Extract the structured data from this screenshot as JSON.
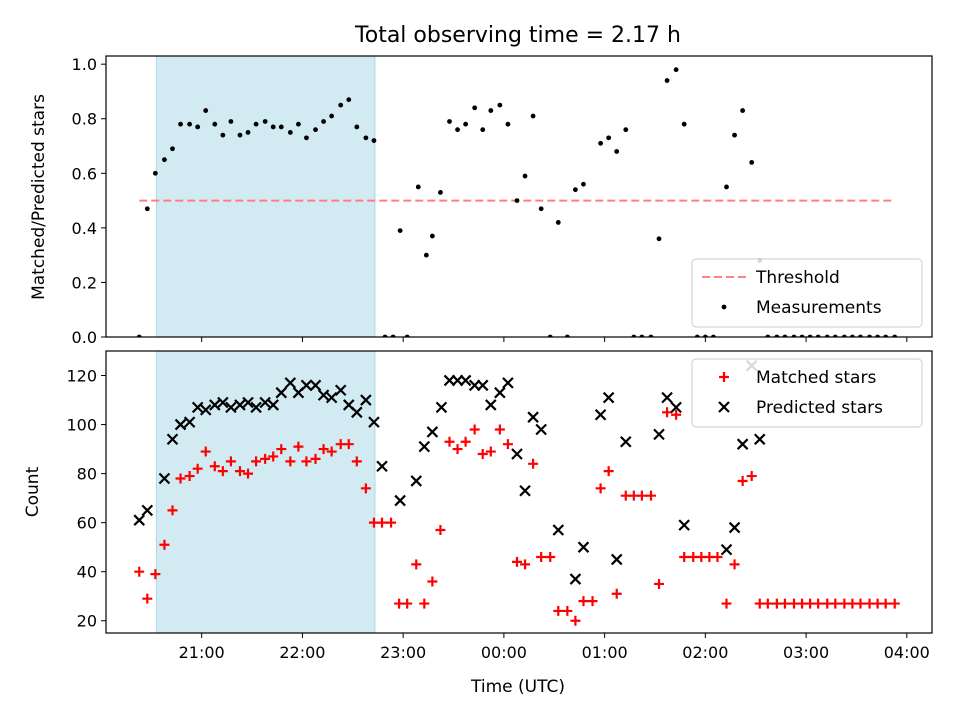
{
  "title": "Total observing time = 2.17 h",
  "xlabel": "Time (UTC)",
  "x_ticks": [
    "21:00",
    "22:00",
    "23:00",
    "00:00",
    "01:00",
    "02:00",
    "03:00",
    "04:00"
  ],
  "colors": {
    "shade": "#add8e6",
    "threshold": "#ff7f7f",
    "measurements": "#000000",
    "matched": "#ff0000",
    "predicted": "#000000"
  },
  "chart_data": [
    {
      "type": "scatter",
      "ylabel": "Matched/Predicted stars",
      "ylim": [
        0,
        1.03
      ],
      "xlim": [
        -3.95,
        4.25
      ],
      "x_unit": "hours relative to 00:00 UTC",
      "shaded_interval": [
        -3.45,
        -1.28
      ],
      "yticks": [
        "0.0",
        "0.2",
        "0.4",
        "0.6",
        "0.8",
        "1.0"
      ],
      "threshold": {
        "name": "Threshold",
        "value": 0.5,
        "x_range": [
          -3.62,
          3.88
        ]
      },
      "legend": {
        "position": "lower right",
        "entries": [
          "Threshold",
          "Measurements"
        ]
      },
      "series": [
        {
          "name": "Measurements",
          "points": [
            [
              -3.62,
              0.0
            ],
            [
              -3.54,
              0.47
            ],
            [
              -3.46,
              0.6
            ],
            [
              -3.37,
              0.65
            ],
            [
              -3.29,
              0.69
            ],
            [
              -3.21,
              0.78
            ],
            [
              -3.12,
              0.78
            ],
            [
              -3.04,
              0.77
            ],
            [
              -2.96,
              0.83
            ],
            [
              -2.87,
              0.78
            ],
            [
              -2.79,
              0.74
            ],
            [
              -2.71,
              0.79
            ],
            [
              -2.62,
              0.74
            ],
            [
              -2.54,
              0.75
            ],
            [
              -2.46,
              0.78
            ],
            [
              -2.37,
              0.79
            ],
            [
              -2.29,
              0.77
            ],
            [
              -2.21,
              0.77
            ],
            [
              -2.12,
              0.75
            ],
            [
              -2.04,
              0.78
            ],
            [
              -1.96,
              0.73
            ],
            [
              -1.87,
              0.76
            ],
            [
              -1.79,
              0.79
            ],
            [
              -1.71,
              0.81
            ],
            [
              -1.62,
              0.85
            ],
            [
              -1.54,
              0.87
            ],
            [
              -1.46,
              0.77
            ],
            [
              -1.37,
              0.73
            ],
            [
              -1.29,
              0.72
            ],
            [
              -1.18,
              0.0
            ],
            [
              -1.1,
              0.0
            ],
            [
              -1.03,
              0.39
            ],
            [
              -0.96,
              0.0
            ],
            [
              -0.85,
              0.55
            ],
            [
              -0.77,
              0.3
            ],
            [
              -0.71,
              0.37
            ],
            [
              -0.63,
              0.53
            ],
            [
              -0.54,
              0.79
            ],
            [
              -0.46,
              0.76
            ],
            [
              -0.38,
              0.78
            ],
            [
              -0.29,
              0.84
            ],
            [
              -0.21,
              0.76
            ],
            [
              -0.13,
              0.83
            ],
            [
              -0.04,
              0.85
            ],
            [
              0.04,
              0.78
            ],
            [
              0.13,
              0.5
            ],
            [
              0.21,
              0.59
            ],
            [
              0.29,
              0.81
            ],
            [
              0.37,
              0.47
            ],
            [
              0.46,
              0.0
            ],
            [
              0.54,
              0.42
            ],
            [
              0.63,
              0.0
            ],
            [
              0.71,
              0.54
            ],
            [
              0.79,
              0.56
            ],
            [
              0.96,
              0.71
            ],
            [
              1.04,
              0.73
            ],
            [
              1.12,
              0.68
            ],
            [
              1.21,
              0.76
            ],
            [
              1.29,
              0.0
            ],
            [
              1.37,
              0.0
            ],
            [
              1.46,
              0.0
            ],
            [
              1.54,
              0.36
            ],
            [
              1.62,
              0.94
            ],
            [
              1.71,
              0.98
            ],
            [
              1.79,
              0.78
            ],
            [
              1.92,
              0.0
            ],
            [
              2.0,
              0.0
            ],
            [
              2.08,
              0.0
            ],
            [
              2.21,
              0.55
            ],
            [
              2.29,
              0.74
            ],
            [
              2.37,
              0.83
            ],
            [
              2.46,
              0.64
            ],
            [
              2.54,
              0.28
            ],
            [
              2.62,
              0.0
            ],
            [
              2.71,
              0.0
            ],
            [
              2.79,
              0.0
            ],
            [
              2.88,
              0.0
            ],
            [
              2.96,
              0.0
            ],
            [
              3.04,
              0.0
            ],
            [
              3.12,
              0.0
            ],
            [
              3.21,
              0.0
            ],
            [
              3.29,
              0.0
            ],
            [
              3.38,
              0.0
            ],
            [
              3.46,
              0.0
            ],
            [
              3.54,
              0.0
            ],
            [
              3.63,
              0.0
            ],
            [
              3.71,
              0.0
            ],
            [
              3.79,
              0.0
            ],
            [
              3.88,
              0.0
            ]
          ]
        }
      ]
    },
    {
      "type": "scatter",
      "ylabel": "Count",
      "ylim": [
        15,
        130
      ],
      "xlim": [
        -3.95,
        4.25
      ],
      "x_unit": "hours relative to 00:00 UTC",
      "shaded_interval": [
        -3.45,
        -1.28
      ],
      "yticks": [
        "20",
        "40",
        "60",
        "80",
        "100",
        "120"
      ],
      "legend": {
        "position": "upper right",
        "entries": [
          "Matched stars",
          "Predicted stars"
        ]
      },
      "series": [
        {
          "name": "Matched stars",
          "marker": "plus",
          "points": [
            [
              -3.62,
              40
            ],
            [
              -3.54,
              29
            ],
            [
              -3.46,
              39
            ],
            [
              -3.37,
              51
            ],
            [
              -3.29,
              65
            ],
            [
              -3.21,
              78
            ],
            [
              -3.12,
              79
            ],
            [
              -3.04,
              82
            ],
            [
              -2.96,
              89
            ],
            [
              -2.87,
              83
            ],
            [
              -2.79,
              81
            ],
            [
              -2.71,
              85
            ],
            [
              -2.62,
              81
            ],
            [
              -2.54,
              80
            ],
            [
              -2.46,
              85
            ],
            [
              -2.37,
              86
            ],
            [
              -2.29,
              87
            ],
            [
              -2.21,
              90
            ],
            [
              -2.12,
              85
            ],
            [
              -2.04,
              91
            ],
            [
              -1.96,
              85
            ],
            [
              -1.87,
              86
            ],
            [
              -1.79,
              90
            ],
            [
              -1.71,
              89
            ],
            [
              -1.62,
              92
            ],
            [
              -1.54,
              92
            ],
            [
              -1.46,
              85
            ],
            [
              -1.37,
              74
            ],
            [
              -1.29,
              60
            ],
            [
              -1.21,
              60
            ],
            [
              -1.12,
              60
            ],
            [
              -1.04,
              27
            ],
            [
              -0.96,
              27
            ],
            [
              -0.87,
              43
            ],
            [
              -0.79,
              27
            ],
            [
              -0.71,
              36
            ],
            [
              -0.63,
              57
            ],
            [
              -0.54,
              93
            ],
            [
              -0.46,
              90
            ],
            [
              -0.38,
              93
            ],
            [
              -0.29,
              98
            ],
            [
              -0.21,
              88
            ],
            [
              -0.13,
              89
            ],
            [
              -0.04,
              98
            ],
            [
              0.04,
              92
            ],
            [
              0.13,
              44
            ],
            [
              0.21,
              43
            ],
            [
              0.29,
              84
            ],
            [
              0.37,
              46
            ],
            [
              0.46,
              46
            ],
            [
              0.54,
              24
            ],
            [
              0.63,
              24
            ],
            [
              0.71,
              20
            ],
            [
              0.79,
              28
            ],
            [
              0.88,
              28
            ],
            [
              0.96,
              74
            ],
            [
              1.04,
              81
            ],
            [
              1.12,
              31
            ],
            [
              1.21,
              71
            ],
            [
              1.29,
              71
            ],
            [
              1.37,
              71
            ],
            [
              1.46,
              71
            ],
            [
              1.54,
              35
            ],
            [
              1.62,
              105
            ],
            [
              1.71,
              104
            ],
            [
              1.79,
              46
            ],
            [
              1.88,
              46
            ],
            [
              1.96,
              46
            ],
            [
              2.04,
              46
            ],
            [
              2.12,
              46
            ],
            [
              2.21,
              27
            ],
            [
              2.29,
              43
            ],
            [
              2.37,
              77
            ],
            [
              2.46,
              79
            ],
            [
              2.54,
              27
            ],
            [
              2.62,
              27
            ],
            [
              2.71,
              27
            ],
            [
              2.79,
              27
            ],
            [
              2.88,
              27
            ],
            [
              2.96,
              27
            ],
            [
              3.04,
              27
            ],
            [
              3.12,
              27
            ],
            [
              3.21,
              27
            ],
            [
              3.29,
              27
            ],
            [
              3.38,
              27
            ],
            [
              3.46,
              27
            ],
            [
              3.54,
              27
            ],
            [
              3.63,
              27
            ],
            [
              3.71,
              27
            ],
            [
              3.79,
              27
            ],
            [
              3.88,
              27
            ]
          ]
        },
        {
          "name": "Predicted stars",
          "marker": "x",
          "points": [
            [
              -3.62,
              61
            ],
            [
              -3.54,
              65
            ],
            [
              -3.37,
              78
            ],
            [
              -3.29,
              94
            ],
            [
              -3.21,
              100
            ],
            [
              -3.12,
              101
            ],
            [
              -3.04,
              107
            ],
            [
              -2.96,
              106
            ],
            [
              -2.87,
              108
            ],
            [
              -2.79,
              109
            ],
            [
              -2.71,
              107
            ],
            [
              -2.62,
              108
            ],
            [
              -2.54,
              109
            ],
            [
              -2.46,
              107
            ],
            [
              -2.37,
              109
            ],
            [
              -2.29,
              108
            ],
            [
              -2.21,
              113
            ],
            [
              -2.12,
              117
            ],
            [
              -2.04,
              113
            ],
            [
              -1.96,
              116
            ],
            [
              -1.87,
              116
            ],
            [
              -1.79,
              112
            ],
            [
              -1.71,
              111
            ],
            [
              -1.62,
              114
            ],
            [
              -1.54,
              108
            ],
            [
              -1.46,
              105
            ],
            [
              -1.37,
              110
            ],
            [
              -1.29,
              101
            ],
            [
              -1.21,
              83
            ],
            [
              -1.03,
              69
            ],
            [
              -0.87,
              77
            ],
            [
              -0.79,
              91
            ],
            [
              -0.71,
              97
            ],
            [
              -0.62,
              107
            ],
            [
              -0.54,
              118
            ],
            [
              -0.46,
              118
            ],
            [
              -0.38,
              118
            ],
            [
              -0.29,
              116
            ],
            [
              -0.21,
              116
            ],
            [
              -0.13,
              108
            ],
            [
              -0.04,
              113
            ],
            [
              0.04,
              117
            ],
            [
              0.13,
              88
            ],
            [
              0.21,
              73
            ],
            [
              0.29,
              103
            ],
            [
              0.37,
              98
            ],
            [
              0.54,
              57
            ],
            [
              0.71,
              37
            ],
            [
              0.79,
              50
            ],
            [
              0.96,
              104
            ],
            [
              1.04,
              111
            ],
            [
              1.12,
              45
            ],
            [
              1.21,
              93
            ],
            [
              1.54,
              96
            ],
            [
              1.62,
              111
            ],
            [
              1.71,
              107
            ],
            [
              1.79,
              59
            ],
            [
              2.21,
              49
            ],
            [
              2.29,
              58
            ],
            [
              2.37,
              92
            ],
            [
              2.46,
              124
            ],
            [
              2.54,
              94
            ]
          ]
        }
      ]
    }
  ]
}
